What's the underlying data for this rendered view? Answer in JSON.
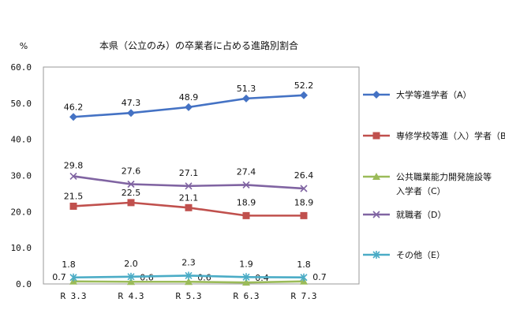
{
  "chart_data": {
    "type": "line",
    "title": "本県（公立のみ）の卒業者に占める進路別割合",
    "unit": "%",
    "categories": [
      "R 3.3",
      "R 4.3",
      "R 5.3",
      "R 6.3",
      "R 7.3"
    ],
    "ylim": [
      0,
      60
    ],
    "yticks": [
      "0.0",
      "10.0",
      "20.0",
      "30.0",
      "40.0",
      "50.0",
      "60.0"
    ],
    "grid": "none",
    "legend": "right",
    "series": [
      {
        "name": "大学等進学者（A）",
        "values": [
          46.2,
          47.3,
          48.9,
          51.3,
          52.2
        ],
        "labels": [
          "46.2",
          "47.3",
          "48.9",
          "51.3",
          "52.2"
        ],
        "color": "#4472c4",
        "marker": "diamond"
      },
      {
        "name": "専修学校等進（入）学者（B）",
        "values": [
          21.5,
          22.5,
          21.1,
          18.9,
          18.9
        ],
        "labels": [
          "21.5",
          "22.5",
          "21.1",
          "18.9",
          "18.9"
        ],
        "color": "#c0504d",
        "marker": "square"
      },
      {
        "name": "公共職業能力開発施設等入学者（C）",
        "legend_lines": [
          "公共職業能力開発施設等",
          "入学者（C）"
        ],
        "values": [
          0.7,
          0.6,
          0.6,
          0.4,
          0.7
        ],
        "labels": [
          "0.7",
          "0.6",
          "0.6",
          "0.4",
          "0.7"
        ],
        "color": "#9bbb59",
        "marker": "triangle"
      },
      {
        "name": "就職者（D）",
        "values": [
          29.8,
          27.6,
          27.1,
          27.4,
          26.4
        ],
        "labels": [
          "29.8",
          "27.6",
          "27.1",
          "27.4",
          "26.4"
        ],
        "color": "#8064a2",
        "marker": "x"
      },
      {
        "name": "その他（E）",
        "values": [
          1.8,
          2.0,
          2.3,
          1.9,
          1.8
        ],
        "labels": [
          "1.8",
          "2.0",
          "2.3",
          "1.9",
          "1.8"
        ],
        "color": "#4bacc6",
        "marker": "star"
      }
    ]
  }
}
